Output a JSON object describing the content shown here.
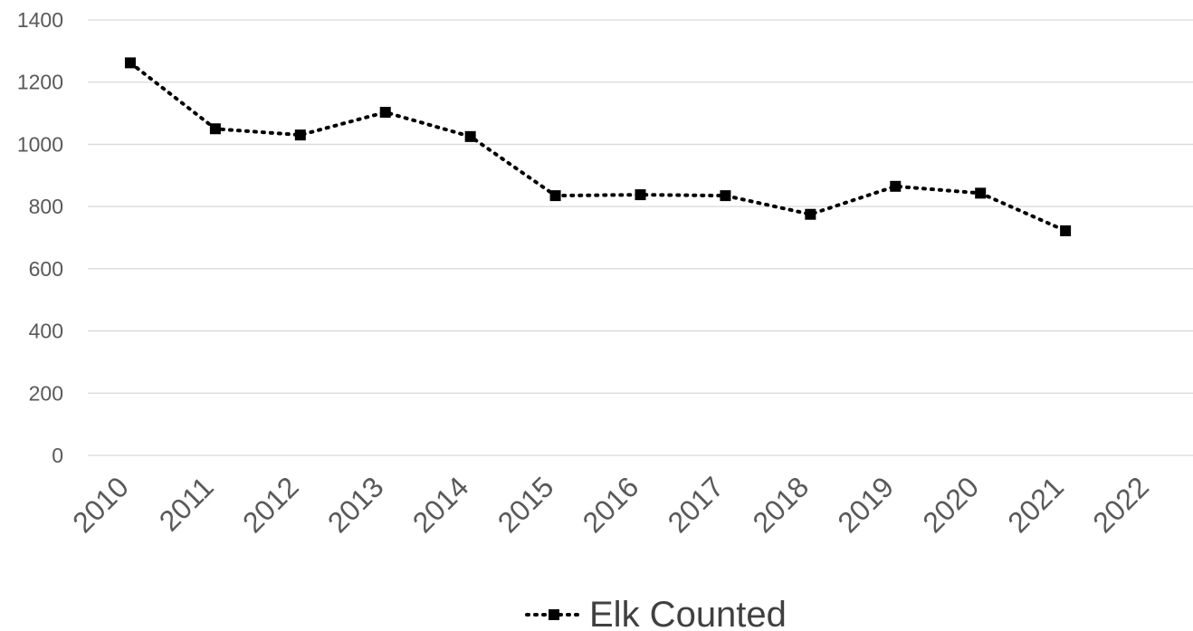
{
  "chart_data": {
    "type": "line",
    "title": "",
    "xlabel": "",
    "ylabel": "",
    "categories": [
      "2010",
      "2011",
      "2012",
      "2013",
      "2014",
      "2015",
      "2016",
      "2017",
      "2018",
      "2019",
      "2020",
      "2021",
      "2022"
    ],
    "ylim": [
      0,
      1400
    ],
    "yticks": [
      0,
      200,
      400,
      600,
      800,
      1000,
      1200,
      1400
    ],
    "grid": true,
    "legend_position": "bottom",
    "series": [
      {
        "name": "Elk Counted",
        "color": "#000000",
        "line_style": "dotted",
        "marker": "square",
        "values": [
          1262,
          1050,
          1030,
          1103,
          1025,
          835,
          838,
          835,
          775,
          865,
          843,
          722,
          null
        ]
      }
    ]
  }
}
